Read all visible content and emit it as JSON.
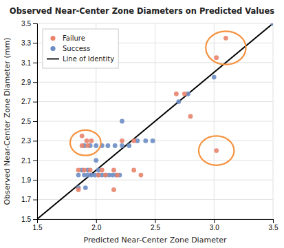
{
  "chart_data": {
    "type": "scatter",
    "title": "Observed Near-Center Zone Diameters on Predicted Values",
    "xlabel": "Predicted Near-Center Zone Diameter",
    "ylabel": "Observed Near-Center Zone Diameter (mm)",
    "xlim": [
      1.5,
      3.5
    ],
    "ylim": [
      1.5,
      3.5
    ],
    "xticks": [
      1.5,
      {
        "value": 2,
        "label": "2.0"
      },
      2.5,
      {
        "value": 3,
        "label": "3.0"
      },
      3.5
    ],
    "yticks": [
      1.5,
      1.7,
      1.9,
      2.1,
      2.3,
      2.5,
      2.7,
      2.9,
      3.1,
      3.3,
      3.5
    ],
    "grid": true,
    "legend": "upper left",
    "series": [
      {
        "name": "Failure",
        "type": "scatter",
        "marker": "circle",
        "color": "#E8836A",
        "x": [
          1.88,
          1.92,
          1.96,
          1.88,
          1.93,
          1.85,
          1.9,
          1.95,
          2.05,
          2.15,
          2.32,
          1.85,
          2.15,
          2.02,
          2.08,
          2.18,
          2.38,
          2.22,
          2.32,
          2.68,
          2.75,
          2.8,
          3.02,
          3.1,
          3.02
        ],
        "values": [
          2.35,
          2.3,
          2.3,
          2.25,
          2.25,
          2.0,
          2.0,
          2.0,
          2.0,
          2.0,
          2.0,
          1.8,
          1.8,
          1.95,
          1.95,
          1.95,
          1.95,
          2.3,
          2.3,
          2.78,
          2.78,
          2.55,
          3.15,
          3.35,
          2.2
        ]
      },
      {
        "name": "Success",
        "type": "scatter",
        "marker": "circle",
        "color": "#6B8DC4",
        "x": [
          1.85,
          1.9,
          1.93,
          1.96,
          1.99,
          2.02,
          2.05,
          2.08,
          2.11,
          2.14,
          2.17,
          2.2,
          1.88,
          1.93,
          2.02,
          1.85,
          1.91,
          1.9,
          1.95,
          2.0,
          2.05,
          2.1,
          2.16,
          2.22,
          2.28,
          2.0,
          2.22,
          2.35,
          2.42,
          2.48,
          2.7,
          2.78,
          3.0,
          3.5
        ],
        "values": [
          1.95,
          1.95,
          1.95,
          1.95,
          1.95,
          1.95,
          1.95,
          1.95,
          1.95,
          1.95,
          1.95,
          1.95,
          2.0,
          2.0,
          2.0,
          1.82,
          1.82,
          2.25,
          2.25,
          2.25,
          2.25,
          2.25,
          2.25,
          2.25,
          2.25,
          2.1,
          2.5,
          2.3,
          2.3,
          2.3,
          2.7,
          2.78,
          2.95,
          3.5
        ]
      },
      {
        "name": "Line of Identity",
        "type": "line",
        "line_style": "solid",
        "color": "#000000",
        "x": [
          1.5,
          3.5
        ],
        "values": [
          1.5,
          3.5
        ]
      }
    ],
    "annotations": [
      {
        "type": "circle",
        "x": 1.91,
        "y": 2.28,
        "r": 0.13,
        "color": "#F5923E"
      },
      {
        "type": "circle",
        "x": 3.1,
        "y": 3.25,
        "r": 0.17,
        "color": "#F5923E"
      },
      {
        "type": "circle",
        "x": 3.02,
        "y": 2.2,
        "r": 0.15,
        "color": "#F5923E"
      }
    ]
  }
}
